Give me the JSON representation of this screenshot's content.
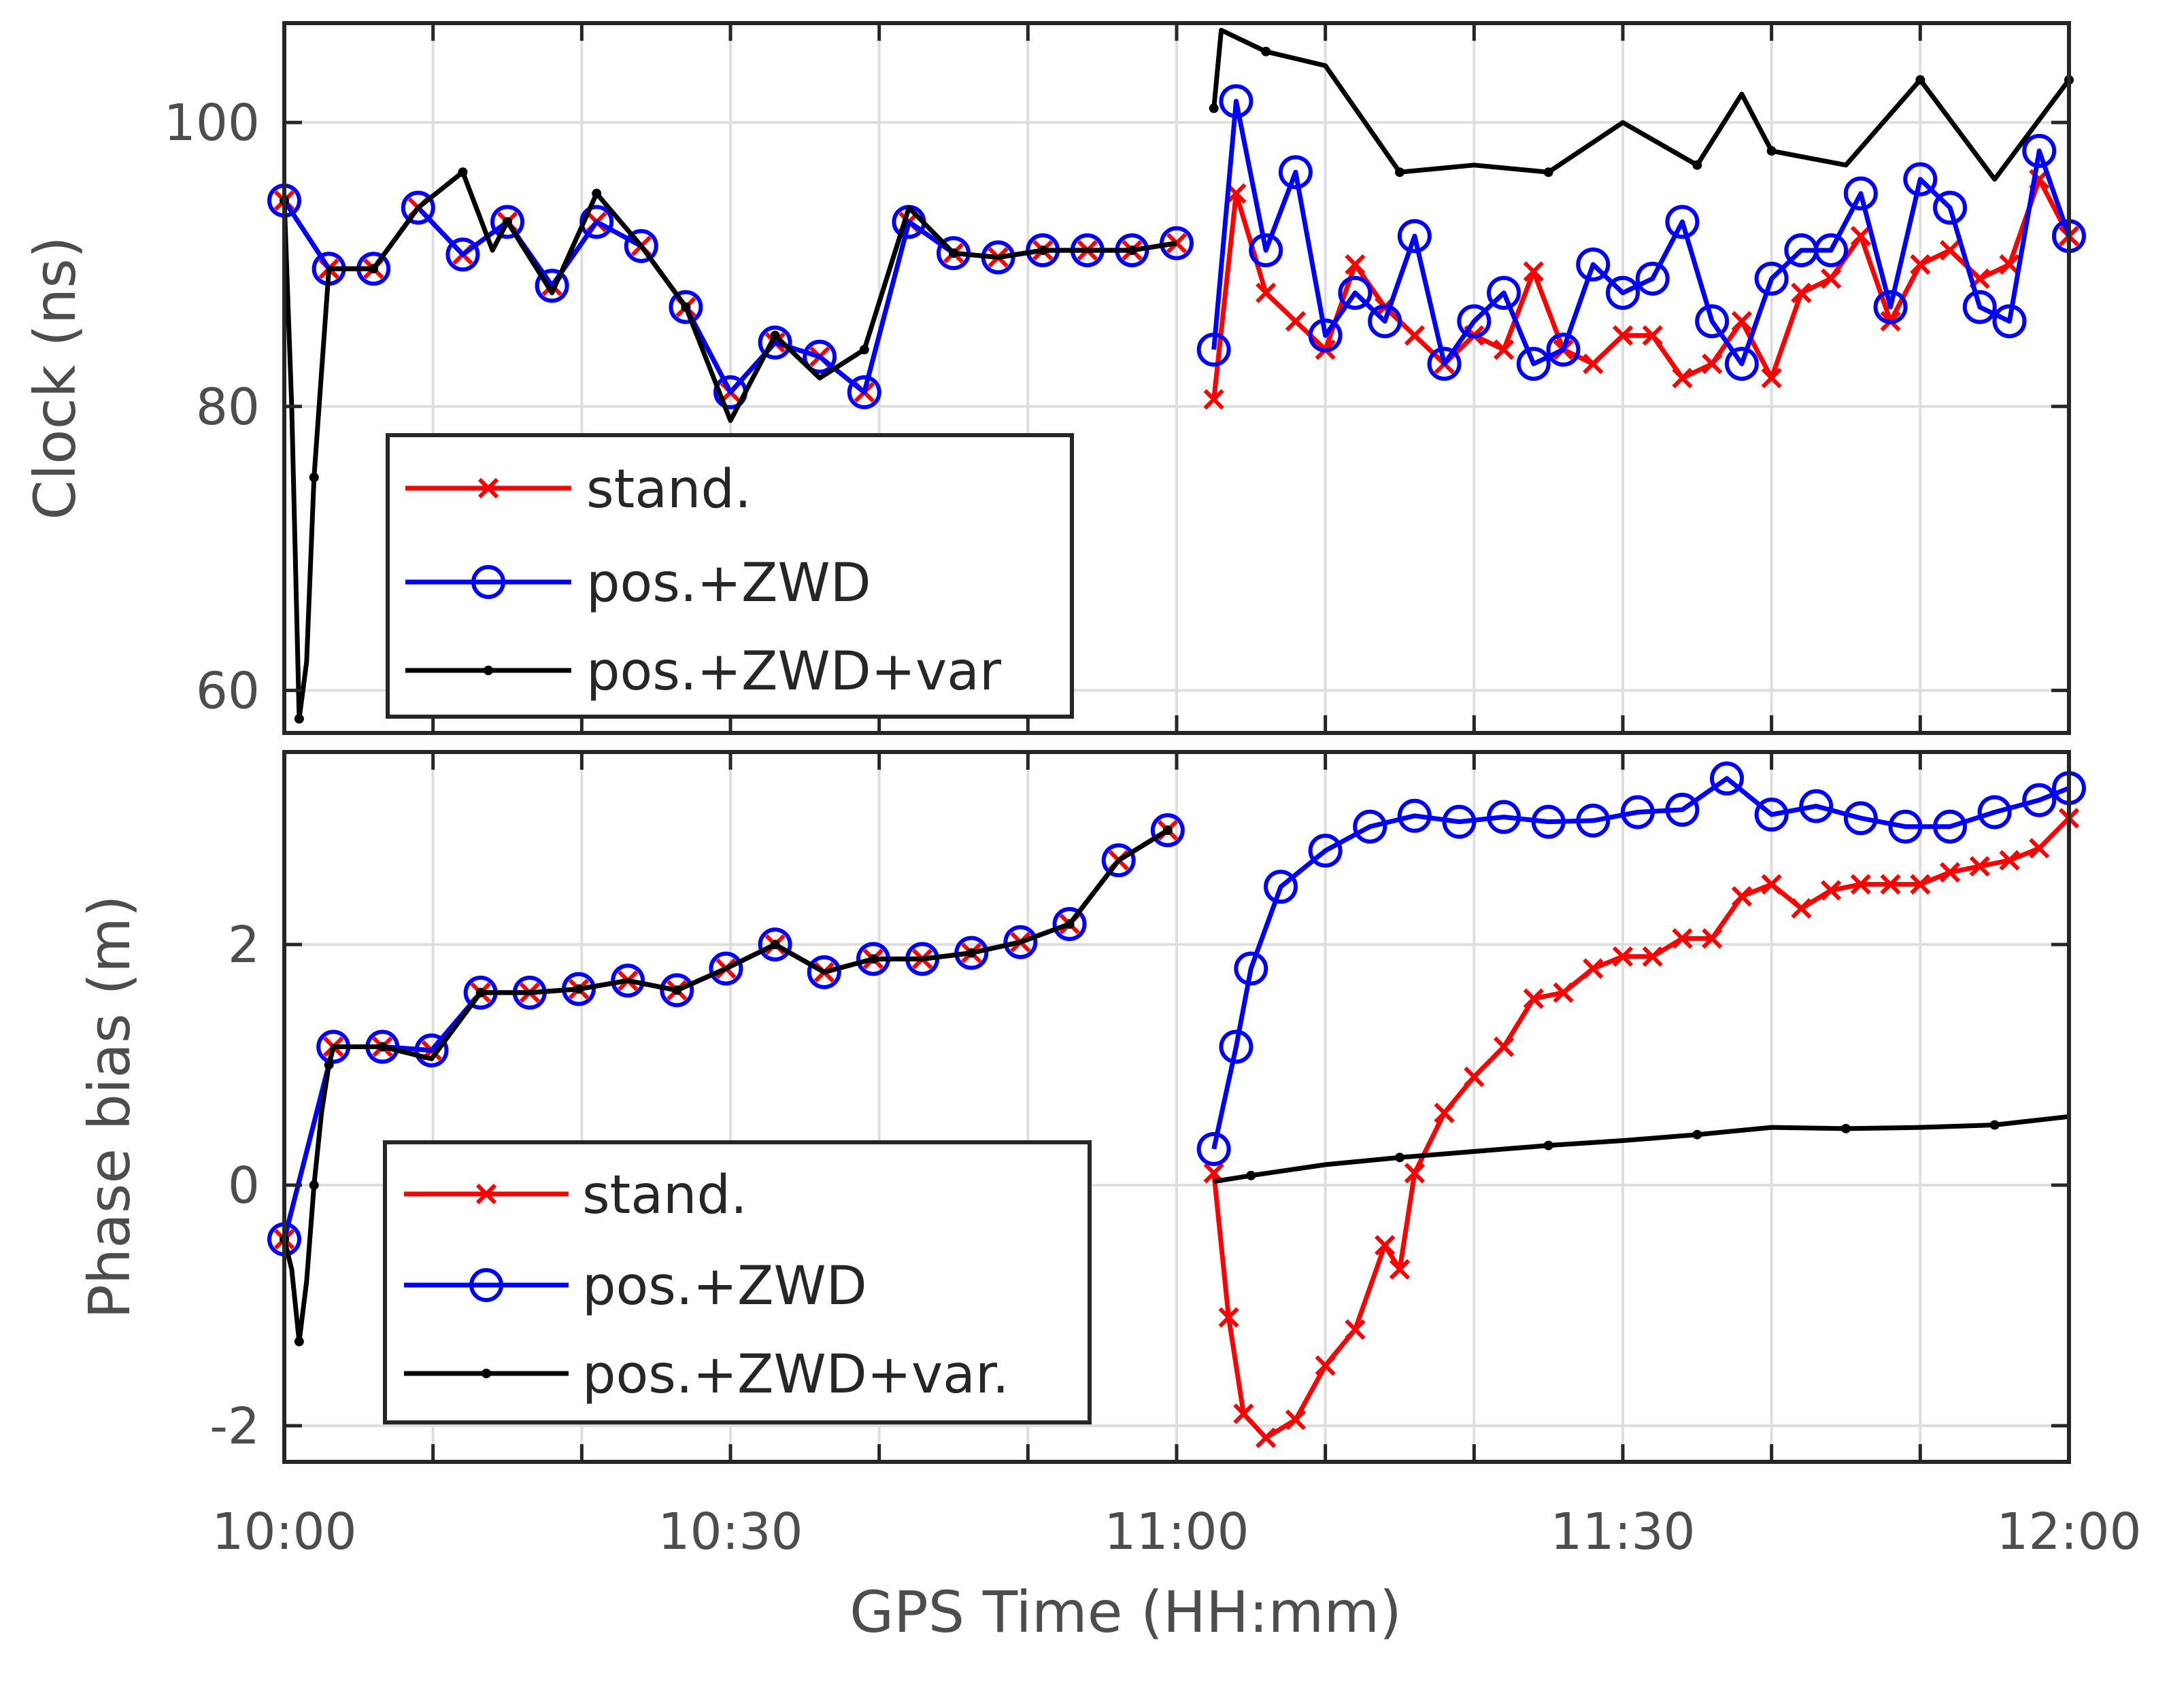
{
  "chart_data": [
    {
      "type": "line",
      "ylabel": "Clock (ns)",
      "xlabel": "",
      "xlim": [
        0,
        120
      ],
      "ylim": [
        57,
        107
      ],
      "yticks": [
        60,
        80,
        100
      ],
      "yticklabels": [
        "60",
        "80",
        "100"
      ],
      "grid": true,
      "legend_position": "bottom-left",
      "series": [
        {
          "name": "stand.",
          "color": "#ff0000",
          "marker": "x",
          "x": [
            0,
            3,
            6,
            9,
            12,
            15,
            18,
            21,
            24,
            27,
            30,
            33,
            36,
            39,
            42,
            45,
            48,
            51,
            54,
            57,
            60,
            62.5,
            64,
            66,
            68,
            70,
            72,
            74,
            76,
            78,
            80,
            82,
            84,
            86,
            88,
            90,
            92,
            94,
            96,
            98,
            100,
            102,
            104,
            106,
            108,
            110,
            112,
            114,
            116,
            118,
            120
          ],
          "y": [
            94.5,
            89.7,
            89.7,
            94,
            90.7,
            93,
            88.5,
            93,
            91.3,
            87,
            81,
            84.5,
            83.5,
            81,
            93,
            90.8,
            90.5,
            91,
            91,
            91,
            91.5,
            80.5,
            95,
            88,
            86,
            84,
            90,
            87,
            85,
            83,
            85,
            84,
            89.5,
            84,
            83,
            85,
            85,
            82,
            83,
            86,
            82,
            88,
            89,
            92,
            86,
            90,
            91,
            89,
            90,
            96,
            92
          ]
        },
        {
          "name": "pos.+ZWD",
          "color": "#0000ff",
          "marker": "o",
          "x": [
            0,
            3,
            6,
            9,
            12,
            15,
            18,
            21,
            24,
            27,
            30,
            33,
            36,
            39,
            42,
            45,
            48,
            51,
            54,
            57,
            60,
            62.5,
            64,
            66,
            68,
            70,
            72,
            74,
            76,
            78,
            80,
            82,
            84,
            86,
            88,
            90,
            92,
            94,
            96,
            98,
            100,
            102,
            104,
            106,
            108,
            110,
            112,
            114,
            116,
            118,
            120
          ],
          "y": [
            94.5,
            89.7,
            89.7,
            94,
            90.7,
            93,
            88.5,
            93,
            91.3,
            87,
            81,
            84.5,
            83.5,
            81,
            93,
            90.8,
            90.5,
            91,
            91,
            91,
            91.5,
            84,
            101.5,
            91,
            96.5,
            85,
            88,
            86,
            92,
            83,
            86,
            88,
            83,
            84,
            90,
            88,
            89,
            93,
            86,
            83,
            89,
            91,
            91,
            95,
            87,
            96,
            94,
            87,
            86,
            98,
            92
          ]
        },
        {
          "name": "pos.+ZWD+var",
          "color": "#000000",
          "marker": "dot",
          "x": [
            0,
            0.5,
            1,
            1.5,
            2,
            3,
            6,
            9,
            12,
            14,
            15,
            18,
            21,
            24,
            27,
            30,
            33,
            36,
            39,
            42,
            45,
            48,
            51,
            54,
            57,
            60,
            62.5,
            63,
            66,
            70,
            75,
            80,
            85,
            90,
            95,
            98,
            100,
            105,
            110,
            115,
            120
          ],
          "y": [
            94.5,
            80,
            58,
            62,
            75,
            89.7,
            89.7,
            94,
            96.5,
            91,
            93,
            88,
            95,
            91.3,
            87,
            79,
            85,
            82,
            84,
            94,
            90.8,
            90.5,
            91,
            91,
            91,
            91.5,
            101,
            106.5,
            105,
            104,
            96.5,
            97,
            96.5,
            100,
            97,
            102,
            98,
            97,
            103,
            96,
            103
          ]
        }
      ]
    },
    {
      "type": "line",
      "ylabel": "Phase bias (m)",
      "xlabel": "GPS Time (HH:mm)",
      "xlim": [
        0,
        120
      ],
      "ylim": [
        -2.3,
        3.6
      ],
      "yticks": [
        -2,
        0,
        2
      ],
      "yticklabels": [
        "-2",
        "0",
        "2"
      ],
      "xticklabels": [
        "10:00",
        "10:30",
        "11:00",
        "11:30",
        "12:00"
      ],
      "xticks": [
        0,
        30,
        60,
        90,
        120
      ],
      "grid": true,
      "legend_position": "bottom-left",
      "series": [
        {
          "name": "stand.",
          "color": "#ff0000",
          "marker": "x",
          "x": [
            0,
            3.3,
            6.6,
            9.9,
            13.2,
            16.5,
            19.8,
            23.1,
            26.4,
            29.7,
            33,
            36.3,
            39.6,
            42.9,
            46.2,
            49.5,
            52.8,
            56.1,
            59.4,
            62.5,
            63.5,
            64.5,
            66,
            68,
            70,
            72,
            74,
            75,
            76,
            78,
            80,
            82,
            84,
            86,
            88,
            90,
            92,
            94,
            96,
            98,
            100,
            102,
            104,
            106,
            108,
            110,
            112,
            114,
            116,
            118,
            120
          ],
          "y": [
            -0.45,
            1.15,
            1.15,
            1.12,
            1.6,
            1.6,
            1.63,
            1.7,
            1.62,
            1.8,
            2.0,
            1.77,
            1.88,
            1.88,
            1.93,
            2.02,
            2.17,
            2.7,
            2.95,
            0.1,
            -1.1,
            -1.9,
            -2.1,
            -1.95,
            -1.5,
            -1.2,
            -0.5,
            -0.7,
            0.1,
            0.6,
            0.9,
            1.15,
            1.55,
            1.6,
            1.8,
            1.9,
            1.9,
            2.05,
            2.05,
            2.4,
            2.5,
            2.3,
            2.45,
            2.5,
            2.5,
            2.5,
            2.6,
            2.65,
            2.7,
            2.8,
            3.05
          ]
        },
        {
          "name": "pos.+ZWD",
          "color": "#0000ff",
          "marker": "o",
          "x": [
            0,
            3.3,
            6.6,
            9.9,
            13.2,
            16.5,
            19.8,
            23.1,
            26.4,
            29.7,
            33,
            36.3,
            39.6,
            42.9,
            46.2,
            49.5,
            52.8,
            56.1,
            59.4,
            62.5,
            64,
            65,
            67,
            70,
            73,
            76,
            79,
            82,
            85,
            88,
            91,
            94,
            97,
            100,
            103,
            106,
            109,
            112,
            115,
            118,
            120
          ],
          "y": [
            -0.45,
            1.15,
            1.15,
            1.12,
            1.6,
            1.6,
            1.63,
            1.7,
            1.62,
            1.8,
            2.0,
            1.77,
            1.88,
            1.88,
            1.93,
            2.02,
            2.17,
            2.7,
            2.95,
            0.3,
            1.15,
            1.8,
            2.48,
            2.78,
            2.98,
            3.07,
            3.02,
            3.06,
            3.02,
            3.03,
            3.1,
            3.12,
            3.38,
            3.08,
            3.15,
            3.05,
            2.98,
            2.98,
            3.1,
            3.2,
            3.3
          ]
        },
        {
          "name": "pos.+ZWD+var.",
          "color": "#000000",
          "marker": "dot",
          "x": [
            0,
            0.5,
            1,
            1.5,
            2,
            2.5,
            3,
            3.3,
            6.6,
            9.9,
            13.2,
            16.5,
            19.8,
            23.1,
            26.4,
            29.7,
            33,
            36.3,
            39.6,
            42.9,
            46.2,
            49.5,
            52.8,
            56.1,
            59.4,
            62.5,
            65,
            70,
            75,
            80,
            85,
            90,
            95,
            100,
            105,
            110,
            115,
            120
          ],
          "y": [
            -0.45,
            -0.7,
            -1.3,
            -0.8,
            0.0,
            0.6,
            1.0,
            1.15,
            1.15,
            1.05,
            1.6,
            1.6,
            1.63,
            1.7,
            1.62,
            1.8,
            2.0,
            1.77,
            1.88,
            1.88,
            1.93,
            2.02,
            2.17,
            2.7,
            2.95,
            0.03,
            0.08,
            0.17,
            0.23,
            0.28,
            0.33,
            0.37,
            0.42,
            0.48,
            0.47,
            0.48,
            0.5,
            0.57
          ]
        }
      ]
    }
  ]
}
